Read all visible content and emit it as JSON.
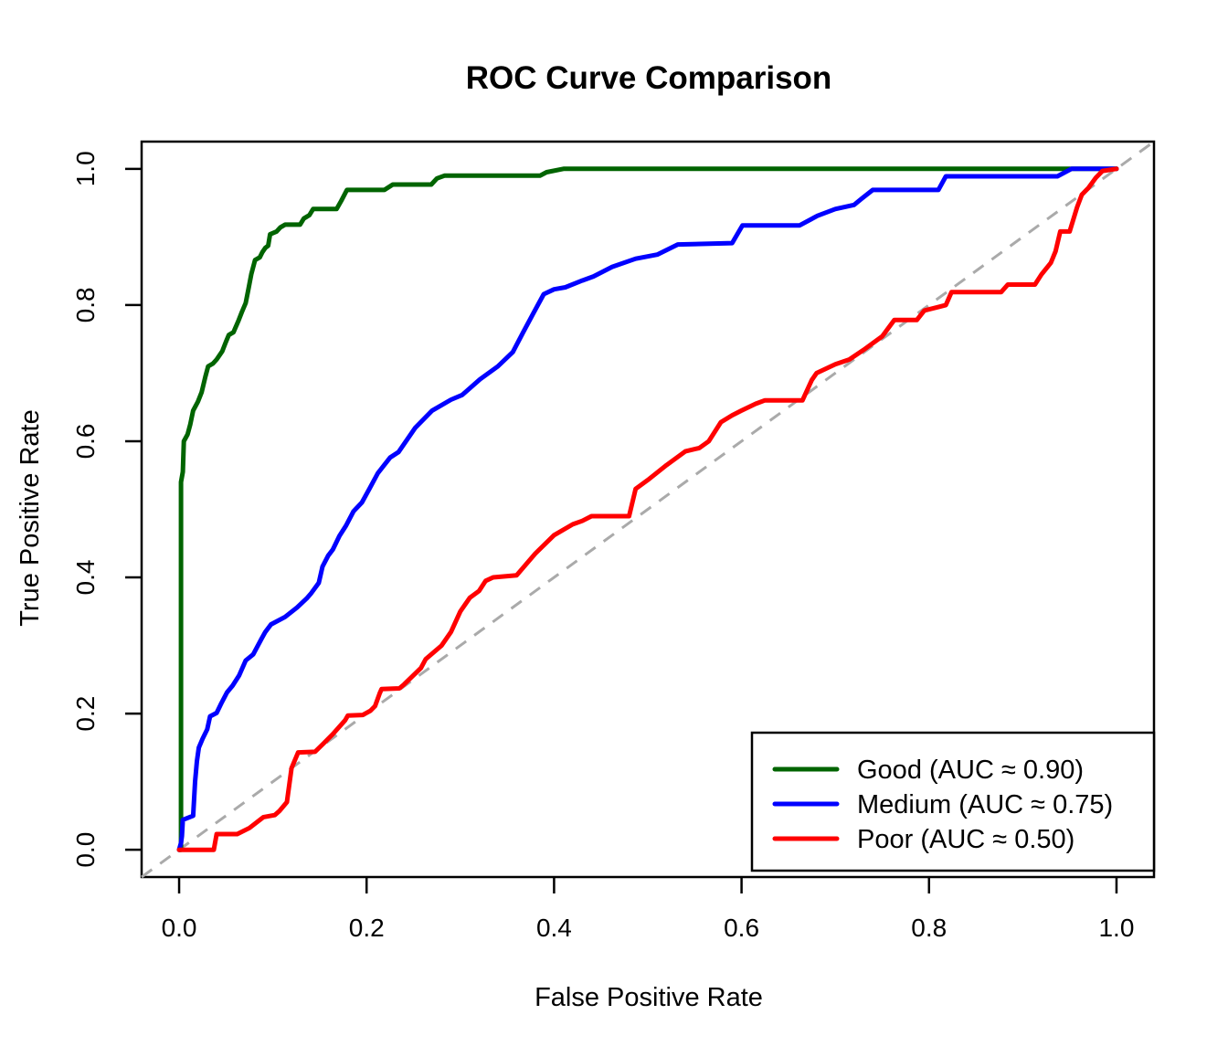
{
  "title": "ROC Curve Comparison",
  "axes": {
    "x_label": "False Positive Rate",
    "y_label": "True Positive Rate"
  },
  "legend": {
    "entries": [
      {
        "label": "Good (AUC ≈ 0.90)",
        "color": "#006400"
      },
      {
        "label": "Medium (AUC ≈ 0.75)",
        "color": "#0000ff"
      },
      {
        "label": "Poor (AUC ≈ 0.50)",
        "color": "#ff0000"
      }
    ]
  },
  "colors": {
    "good": "#006400",
    "medium": "#0000ff",
    "poor": "#ff0000",
    "reference_line": "#aaaaaa",
    "frame": "#000000",
    "background": "#ffffff"
  },
  "chart_data": {
    "type": "line",
    "title": "ROC Curve Comparison",
    "xlabel": "False Positive Rate",
    "ylabel": "True Positive Rate",
    "xlim": [
      0,
      1
    ],
    "ylim": [
      0,
      1
    ],
    "grid": false,
    "legend_position": "bottom-right",
    "x_ticks": [
      {
        "value": 0.0,
        "label": "0.0"
      },
      {
        "value": 0.2,
        "label": "0.2"
      },
      {
        "value": 0.4,
        "label": "0.4"
      },
      {
        "value": 0.6,
        "label": "0.6"
      },
      {
        "value": 0.8,
        "label": "0.8"
      },
      {
        "value": 1.0,
        "label": "1.0"
      }
    ],
    "y_ticks": [
      {
        "value": 0.0,
        "label": "0.0"
      },
      {
        "value": 0.2,
        "label": "0.2"
      },
      {
        "value": 0.4,
        "label": "0.4"
      },
      {
        "value": 0.6,
        "label": "0.6"
      },
      {
        "value": 0.8,
        "label": "0.8"
      },
      {
        "value": 1.0,
        "label": "1.0"
      }
    ],
    "reference_line": {
      "style": "dashed",
      "color": "#aaaaaa",
      "from": [
        0,
        0
      ],
      "to": [
        1,
        1
      ]
    },
    "series": [
      {
        "name": "good",
        "label": "Good (AUC ≈ 0.90)",
        "auc": 0.9,
        "color": "#006400",
        "points": [
          [
            0,
            0
          ],
          [
            0.002,
            0
          ],
          [
            0.002,
            0.54
          ],
          [
            0.004,
            0.555
          ],
          [
            0.005,
            0.6
          ],
          [
            0.009,
            0.61
          ],
          [
            0.012,
            0.625
          ],
          [
            0.015,
            0.645
          ],
          [
            0.02,
            0.658
          ],
          [
            0.024,
            0.672
          ],
          [
            0.028,
            0.695
          ],
          [
            0.031,
            0.71
          ],
          [
            0.036,
            0.714
          ],
          [
            0.04,
            0.72
          ],
          [
            0.046,
            0.732
          ],
          [
            0.05,
            0.746
          ],
          [
            0.053,
            0.756
          ],
          [
            0.058,
            0.76
          ],
          [
            0.063,
            0.776
          ],
          [
            0.067,
            0.79
          ],
          [
            0.071,
            0.803
          ],
          [
            0.074,
            0.824
          ],
          [
            0.077,
            0.845
          ],
          [
            0.081,
            0.866
          ],
          [
            0.086,
            0.87
          ],
          [
            0.089,
            0.878
          ],
          [
            0.092,
            0.884
          ],
          [
            0.095,
            0.887
          ],
          [
            0.097,
            0.904
          ],
          [
            0.104,
            0.908
          ],
          [
            0.108,
            0.914
          ],
          [
            0.113,
            0.918
          ],
          [
            0.129,
            0.918
          ],
          [
            0.133,
            0.927
          ],
          [
            0.139,
            0.932
          ],
          [
            0.143,
            0.941
          ],
          [
            0.168,
            0.941
          ],
          [
            0.173,
            0.953
          ],
          [
            0.179,
            0.969
          ],
          [
            0.219,
            0.969
          ],
          [
            0.228,
            0.977
          ],
          [
            0.269,
            0.977
          ],
          [
            0.275,
            0.986
          ],
          [
            0.283,
            0.99
          ],
          [
            0.385,
            0.99
          ],
          [
            0.392,
            0.995
          ],
          [
            0.41,
            1.0
          ],
          [
            1.0,
            1.0
          ]
        ]
      },
      {
        "name": "medium",
        "label": "Medium (AUC ≈ 0.75)",
        "auc": 0.75,
        "color": "#0000ff",
        "points": [
          [
            0,
            0
          ],
          [
            0.002,
            0.01
          ],
          [
            0.003,
            0.02
          ],
          [
            0.004,
            0.044
          ],
          [
            0.015,
            0.05
          ],
          [
            0.017,
            0.1
          ],
          [
            0.019,
            0.13
          ],
          [
            0.021,
            0.15
          ],
          [
            0.025,
            0.163
          ],
          [
            0.03,
            0.177
          ],
          [
            0.033,
            0.196
          ],
          [
            0.04,
            0.201
          ],
          [
            0.045,
            0.215
          ],
          [
            0.051,
            0.231
          ],
          [
            0.057,
            0.241
          ],
          [
            0.064,
            0.256
          ],
          [
            0.071,
            0.278
          ],
          [
            0.079,
            0.287
          ],
          [
            0.088,
            0.31
          ],
          [
            0.092,
            0.32
          ],
          [
            0.098,
            0.331
          ],
          [
            0.113,
            0.342
          ],
          [
            0.126,
            0.356
          ],
          [
            0.136,
            0.369
          ],
          [
            0.141,
            0.377
          ],
          [
            0.149,
            0.392
          ],
          [
            0.153,
            0.416
          ],
          [
            0.159,
            0.432
          ],
          [
            0.164,
            0.441
          ],
          [
            0.171,
            0.461
          ],
          [
            0.178,
            0.476
          ],
          [
            0.186,
            0.497
          ],
          [
            0.195,
            0.51
          ],
          [
            0.203,
            0.53
          ],
          [
            0.212,
            0.553
          ],
          [
            0.225,
            0.576
          ],
          [
            0.234,
            0.584
          ],
          [
            0.252,
            0.62
          ],
          [
            0.27,
            0.645
          ],
          [
            0.29,
            0.661
          ],
          [
            0.302,
            0.668
          ],
          [
            0.321,
            0.691
          ],
          [
            0.34,
            0.71
          ],
          [
            0.356,
            0.731
          ],
          [
            0.367,
            0.76
          ],
          [
            0.378,
            0.788
          ],
          [
            0.389,
            0.816
          ],
          [
            0.4,
            0.823
          ],
          [
            0.412,
            0.826
          ],
          [
            0.43,
            0.836
          ],
          [
            0.442,
            0.842
          ],
          [
            0.462,
            0.856
          ],
          [
            0.487,
            0.868
          ],
          [
            0.51,
            0.874
          ],
          [
            0.532,
            0.889
          ],
          [
            0.59,
            0.891
          ],
          [
            0.601,
            0.917
          ],
          [
            0.662,
            0.917
          ],
          [
            0.681,
            0.931
          ],
          [
            0.7,
            0.941
          ],
          [
            0.72,
            0.947
          ],
          [
            0.728,
            0.956
          ],
          [
            0.74,
            0.969
          ],
          [
            0.81,
            0.969
          ],
          [
            0.818,
            0.989
          ],
          [
            0.937,
            0.989
          ],
          [
            0.952,
            1.0
          ],
          [
            1.0,
            1.0
          ]
        ]
      },
      {
        "name": "poor",
        "label": "Poor (AUC ≈ 0.50)",
        "auc": 0.5,
        "color": "#ff0000",
        "points": [
          [
            0,
            0
          ],
          [
            0.037,
            0
          ],
          [
            0.04,
            0.023
          ],
          [
            0.062,
            0.023
          ],
          [
            0.075,
            0.032
          ],
          [
            0.09,
            0.048
          ],
          [
            0.102,
            0.051
          ],
          [
            0.107,
            0.057
          ],
          [
            0.115,
            0.07
          ],
          [
            0.12,
            0.12
          ],
          [
            0.127,
            0.143
          ],
          [
            0.145,
            0.144
          ],
          [
            0.154,
            0.156
          ],
          [
            0.164,
            0.17
          ],
          [
            0.177,
            0.19
          ],
          [
            0.18,
            0.197
          ],
          [
            0.196,
            0.198
          ],
          [
            0.204,
            0.204
          ],
          [
            0.209,
            0.211
          ],
          [
            0.214,
            0.23
          ],
          [
            0.216,
            0.236
          ],
          [
            0.235,
            0.237
          ],
          [
            0.24,
            0.243
          ],
          [
            0.258,
            0.267
          ],
          [
            0.263,
            0.28
          ],
          [
            0.28,
            0.3
          ],
          [
            0.29,
            0.32
          ],
          [
            0.3,
            0.35
          ],
          [
            0.31,
            0.37
          ],
          [
            0.32,
            0.38
          ],
          [
            0.327,
            0.395
          ],
          [
            0.335,
            0.4
          ],
          [
            0.36,
            0.403
          ],
          [
            0.38,
            0.435
          ],
          [
            0.4,
            0.462
          ],
          [
            0.42,
            0.478
          ],
          [
            0.43,
            0.483
          ],
          [
            0.44,
            0.49
          ],
          [
            0.48,
            0.49
          ],
          [
            0.487,
            0.53
          ],
          [
            0.5,
            0.543
          ],
          [
            0.52,
            0.565
          ],
          [
            0.54,
            0.585
          ],
          [
            0.555,
            0.59
          ],
          [
            0.565,
            0.6
          ],
          [
            0.578,
            0.628
          ],
          [
            0.59,
            0.638
          ],
          [
            0.6,
            0.645
          ],
          [
            0.615,
            0.655
          ],
          [
            0.625,
            0.66
          ],
          [
            0.665,
            0.66
          ],
          [
            0.675,
            0.69
          ],
          [
            0.68,
            0.7
          ],
          [
            0.7,
            0.713
          ],
          [
            0.715,
            0.72
          ],
          [
            0.73,
            0.734
          ],
          [
            0.75,
            0.754
          ],
          [
            0.763,
            0.778
          ],
          [
            0.787,
            0.778
          ],
          [
            0.795,
            0.792
          ],
          [
            0.81,
            0.797
          ],
          [
            0.818,
            0.8
          ],
          [
            0.824,
            0.819
          ],
          [
            0.877,
            0.819
          ],
          [
            0.884,
            0.83
          ],
          [
            0.913,
            0.83
          ],
          [
            0.92,
            0.845
          ],
          [
            0.93,
            0.862
          ],
          [
            0.935,
            0.879
          ],
          [
            0.94,
            0.908
          ],
          [
            0.95,
            0.908
          ],
          [
            0.958,
            0.944
          ],
          [
            0.963,
            0.962
          ],
          [
            0.97,
            0.972
          ],
          [
            0.978,
            0.987
          ],
          [
            0.985,
            0.997
          ],
          [
            1.0,
            1.0
          ]
        ]
      }
    ]
  }
}
